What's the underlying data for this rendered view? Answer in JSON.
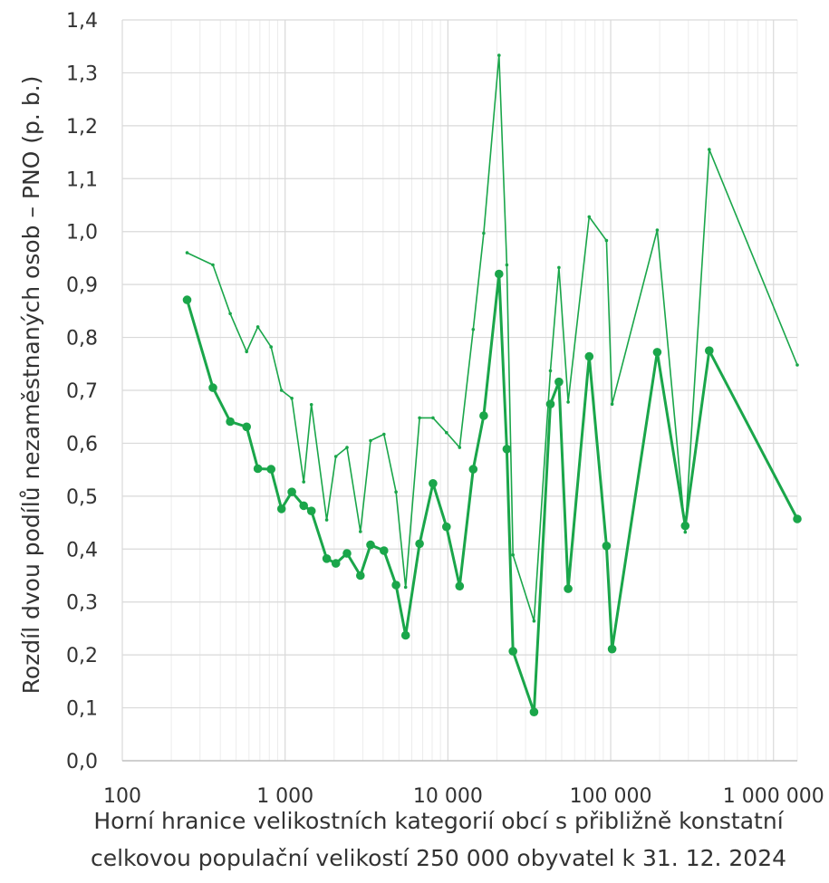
{
  "chart_data": {
    "type": "line",
    "xscale": "log",
    "xlim": [
      100,
      1400000
    ],
    "ylim": [
      0.0,
      1.4
    ],
    "ylabel": "Rozdíl dvou podílů nezaměstnaných osob – PNO (p. b.)",
    "xlabel_line1": "Horní hranice velikostních kategorií obcí s přibližně konstatní",
    "xlabel_line2": "celkovou populační velikostí 250 000 obyvatel k 31. 12. 2024",
    "x_ticks": [
      {
        "value": 100,
        "label": "100"
      },
      {
        "value": 1000,
        "label": "1 000"
      },
      {
        "value": 10000,
        "label": "10 000"
      },
      {
        "value": 100000,
        "label": "100 000"
      },
      {
        "value": 1000000,
        "label": "1 000 000"
      }
    ],
    "y_ticks": [
      {
        "value": 0.0,
        "label": "0,0"
      },
      {
        "value": 0.1,
        "label": "0,1"
      },
      {
        "value": 0.2,
        "label": "0,2"
      },
      {
        "value": 0.3,
        "label": "0,3"
      },
      {
        "value": 0.4,
        "label": "0,4"
      },
      {
        "value": 0.5,
        "label": "0,5"
      },
      {
        "value": 0.6,
        "label": "0,6"
      },
      {
        "value": 0.7,
        "label": "0,7"
      },
      {
        "value": 0.8,
        "label": "0,8"
      },
      {
        "value": 0.9,
        "label": "0,9"
      },
      {
        "value": 1.0,
        "label": "1,0"
      },
      {
        "value": 1.1,
        "label": "1,1"
      },
      {
        "value": 1.2,
        "label": "1,2"
      },
      {
        "value": 1.3,
        "label": "1,3"
      },
      {
        "value": 1.4,
        "label": "1,4"
      }
    ],
    "grid": true,
    "colors": {
      "series_a": "#1aa64a",
      "series_b": "#1aa64a",
      "grid": "#d9d9d9",
      "axis": "#bfbfbf"
    },
    "series": [
      {
        "style": "thin",
        "points": [
          [
            250,
            0.96
          ],
          [
            360,
            0.937
          ],
          [
            460,
            0.845
          ],
          [
            580,
            0.773
          ],
          [
            680,
            0.82
          ],
          [
            820,
            0.782
          ],
          [
            950,
            0.7
          ],
          [
            1100,
            0.685
          ],
          [
            1300,
            0.527
          ],
          [
            1450,
            0.673
          ],
          [
            1800,
            0.455
          ],
          [
            2050,
            0.575
          ],
          [
            2400,
            0.592
          ],
          [
            2900,
            0.433
          ],
          [
            3350,
            0.605
          ],
          [
            4050,
            0.617
          ],
          [
            4800,
            0.508
          ],
          [
            5500,
            0.328
          ],
          [
            6700,
            0.648
          ],
          [
            8100,
            0.648
          ],
          [
            9800,
            0.62
          ],
          [
            11800,
            0.592
          ],
          [
            14300,
            0.815
          ],
          [
            16600,
            0.997
          ],
          [
            20600,
            1.333
          ],
          [
            23000,
            0.937
          ],
          [
            25100,
            0.389
          ],
          [
            33800,
            0.264
          ],
          [
            42600,
            0.737
          ],
          [
            48100,
            0.932
          ],
          [
            54800,
            0.678
          ],
          [
            73800,
            1.028
          ],
          [
            94200,
            0.983
          ],
          [
            102000,
            0.674
          ],
          [
            193000,
            1.003
          ],
          [
            287000,
            0.432
          ],
          [
            403000,
            1.155
          ],
          [
            1400000,
            0.748
          ]
        ]
      },
      {
        "style": "thick",
        "points": [
          [
            250,
            0.871
          ],
          [
            360,
            0.705
          ],
          [
            460,
            0.641
          ],
          [
            580,
            0.631
          ],
          [
            680,
            0.552
          ],
          [
            820,
            0.551
          ],
          [
            950,
            0.476
          ],
          [
            1100,
            0.508
          ],
          [
            1300,
            0.482
          ],
          [
            1450,
            0.472
          ],
          [
            1800,
            0.382
          ],
          [
            2050,
            0.373
          ],
          [
            2400,
            0.392
          ],
          [
            2900,
            0.35
          ],
          [
            3350,
            0.408
          ],
          [
            4050,
            0.397
          ],
          [
            4800,
            0.332
          ],
          [
            5500,
            0.237
          ],
          [
            6700,
            0.41
          ],
          [
            8100,
            0.524
          ],
          [
            9800,
            0.442
          ],
          [
            11800,
            0.33
          ],
          [
            14300,
            0.551
          ],
          [
            16600,
            0.652
          ],
          [
            20600,
            0.92
          ],
          [
            23000,
            0.589
          ],
          [
            25100,
            0.207
          ],
          [
            33800,
            0.092
          ],
          [
            42600,
            0.674
          ],
          [
            48100,
            0.716
          ],
          [
            54800,
            0.325
          ],
          [
            73800,
            0.764
          ],
          [
            94200,
            0.406
          ],
          [
            102000,
            0.211
          ],
          [
            193000,
            0.772
          ],
          [
            287000,
            0.444
          ],
          [
            403000,
            0.775
          ],
          [
            1400000,
            0.457
          ]
        ]
      }
    ]
  }
}
